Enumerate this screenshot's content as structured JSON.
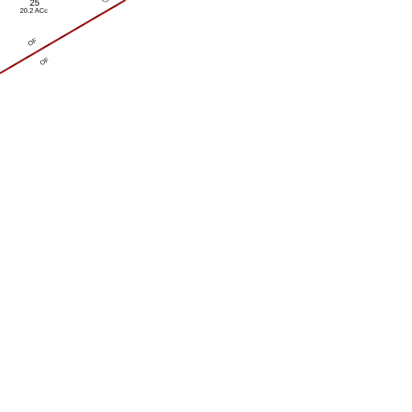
{
  "parcel": {
    "number": "25",
    "area": "20.2 ACc"
  },
  "annotations": [
    "OF",
    "OF"
  ]
}
